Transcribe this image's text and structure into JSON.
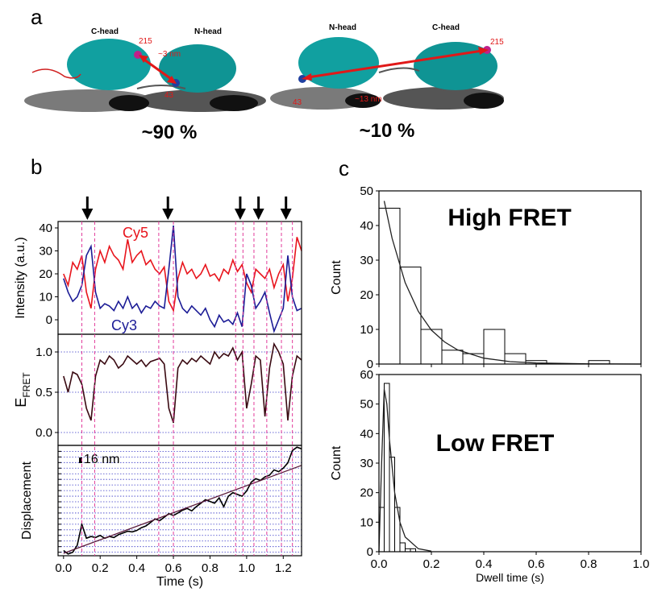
{
  "panel_labels": [
    "a",
    "b",
    "c"
  ],
  "structures": [
    {
      "heads": [
        "C-head",
        "N-head"
      ],
      "residue_top": "215",
      "residue_bottom": "43",
      "distance": "~3 nm",
      "population": "~90 %"
    },
    {
      "heads": [
        "N-head",
        "C-head"
      ],
      "residue_top": "215",
      "residue_bottom": "43",
      "distance": "~13 nm",
      "population": "~10 %"
    }
  ],
  "chart_data": [
    {
      "type": "line",
      "ylabel": "Intensity  (a.u.)",
      "xlim": [
        -0.03,
        1.3
      ],
      "ylim": [
        -6.3,
        42.8
      ],
      "yticks": [
        0,
        10,
        20,
        30,
        40
      ],
      "x": [
        0,
        0.025,
        0.05,
        0.075,
        0.1,
        0.125,
        0.15,
        0.175,
        0.2,
        0.225,
        0.25,
        0.275,
        0.3,
        0.325,
        0.35,
        0.375,
        0.4,
        0.425,
        0.45,
        0.475,
        0.5,
        0.525,
        0.55,
        0.575,
        0.6,
        0.625,
        0.65,
        0.675,
        0.7,
        0.725,
        0.75,
        0.775,
        0.8,
        0.825,
        0.85,
        0.875,
        0.9,
        0.925,
        0.95,
        0.975,
        1.0,
        1.025,
        1.05,
        1.075,
        1.1,
        1.125,
        1.15,
        1.175,
        1.2,
        1.225,
        1.25,
        1.275,
        1.3
      ],
      "series": [
        {
          "name": "Cy5",
          "color": "#e8141c",
          "values": [
            20,
            15,
            25,
            22,
            28,
            12,
            5,
            22,
            30,
            25,
            32,
            28,
            26,
            22,
            35,
            25,
            28,
            30,
            24,
            26,
            22,
            20,
            23,
            8,
            4,
            18,
            25,
            20,
            22,
            18,
            20,
            24,
            19,
            20,
            17,
            22,
            20,
            26,
            21,
            24,
            16,
            12,
            22,
            20,
            18,
            22,
            14,
            20,
            24,
            8,
            18,
            36,
            30
          ]
        },
        {
          "name": "Cy3",
          "color": "#1c1c96",
          "values": [
            18,
            12,
            8,
            10,
            15,
            28,
            32,
            12,
            5,
            7,
            6,
            4,
            8,
            5,
            10,
            5,
            7,
            3,
            6,
            5,
            8,
            6,
            5,
            22,
            41,
            10,
            5,
            3,
            6,
            4,
            2,
            5,
            0,
            -3,
            2,
            -1,
            0,
            -2,
            3,
            -3,
            20,
            15,
            5,
            8,
            12,
            3,
            -5,
            0,
            5,
            28,
            10,
            4,
            5
          ]
        }
      ],
      "arrows_x": [
        0.13,
        0.57,
        0.965,
        1.065,
        1.215
      ],
      "dwell_boundaries": [
        0.1,
        0.17,
        0.52,
        0.6,
        0.94,
        0.98,
        1.04,
        1.11,
        1.19,
        1.25
      ]
    },
    {
      "type": "line",
      "ylabel": {
        "main": "E",
        "sub": "FRET"
      },
      "xlim": [
        -0.03,
        1.3
      ],
      "ylim": [
        -0.16,
        1.22
      ],
      "grid": true,
      "yticks": [
        {
          "value": 0,
          "label": "0.0"
        },
        0.5,
        {
          "value": 1,
          "label": "1.0"
        }
      ],
      "x": [
        0,
        0.025,
        0.05,
        0.075,
        0.1,
        0.125,
        0.15,
        0.175,
        0.2,
        0.225,
        0.25,
        0.275,
        0.3,
        0.325,
        0.35,
        0.375,
        0.4,
        0.425,
        0.45,
        0.475,
        0.5,
        0.525,
        0.55,
        0.575,
        0.6,
        0.625,
        0.65,
        0.675,
        0.7,
        0.725,
        0.75,
        0.775,
        0.8,
        0.825,
        0.85,
        0.875,
        0.9,
        0.925,
        0.95,
        0.975,
        1.0,
        1.025,
        1.05,
        1.075,
        1.1,
        1.125,
        1.15,
        1.175,
        1.2,
        1.225,
        1.25,
        1.275,
        1.3
      ],
      "series": [
        {
          "color": "#3a0a12",
          "values": [
            0.7,
            0.5,
            0.75,
            0.72,
            0.6,
            0.3,
            0.15,
            0.7,
            0.9,
            0.85,
            0.95,
            0.9,
            0.8,
            0.85,
            0.95,
            0.9,
            0.85,
            0.9,
            0.82,
            0.88,
            0.9,
            0.92,
            0.85,
            0.3,
            0.12,
            0.8,
            0.9,
            0.85,
            0.92,
            0.88,
            0.95,
            0.9,
            0.85,
            1.0,
            0.92,
            0.98,
            0.95,
            1.05,
            0.9,
            1.0,
            0.3,
            0.6,
            0.95,
            0.9,
            0.2,
            0.8,
            1.1,
            1.0,
            0.85,
            0.15,
            0.7,
            0.95,
            0.9
          ]
        }
      ]
    },
    {
      "type": "line",
      "ylabel": "Displacement",
      "xlabel": "Time (s)",
      "xlim": [
        -0.03,
        1.3
      ],
      "ylim": [
        -10,
        305
      ],
      "xticks": [
        {
          "value": 0,
          "label": "0.0"
        },
        0.2,
        0.4,
        0.6,
        0.8,
        {
          "value": 1,
          "label": "1.0"
        },
        1.2
      ],
      "ygrid": [
        0,
        16,
        32,
        48,
        64,
        80,
        96,
        112,
        128,
        144,
        160,
        176,
        192,
        208,
        224,
        240,
        256,
        272,
        288
      ],
      "scale_bar": {
        "value": 16,
        "label": "16 nm"
      },
      "x": [
        0,
        0.025,
        0.05,
        0.075,
        0.1,
        0.125,
        0.15,
        0.175,
        0.2,
        0.225,
        0.25,
        0.275,
        0.3,
        0.325,
        0.35,
        0.375,
        0.4,
        0.425,
        0.45,
        0.475,
        0.5,
        0.525,
        0.55,
        0.575,
        0.6,
        0.625,
        0.65,
        0.675,
        0.7,
        0.725,
        0.75,
        0.775,
        0.8,
        0.825,
        0.85,
        0.875,
        0.9,
        0.925,
        0.95,
        0.975,
        1.0,
        1.025,
        1.05,
        1.075,
        1.1,
        1.125,
        1.15,
        1.175,
        1.2,
        1.225,
        1.25,
        1.275,
        1.3
      ],
      "series": [
        {
          "color": "#000000",
          "values": [
            5,
            -5,
            0,
            20,
            80,
            40,
            45,
            42,
            48,
            40,
            45,
            42,
            50,
            55,
            60,
            58,
            62,
            70,
            75,
            85,
            95,
            90,
            100,
            110,
            105,
            112,
            120,
            125,
            118,
            130,
            140,
            150,
            145,
            140,
            155,
            130,
            160,
            170,
            165,
            160,
            175,
            200,
            210,
            205,
            215,
            220,
            235,
            230,
            240,
            255,
            290,
            300,
            295
          ]
        }
      ],
      "fit": {
        "color": "#5a1a3a",
        "x": [
          0,
          1.3
        ],
        "values": [
          -3,
          248
        ]
      }
    },
    {
      "type": "histogram",
      "title": "High FRET",
      "ylabel": "Count",
      "xlim": [
        0,
        1.0
      ],
      "ylim": [
        0,
        50
      ],
      "yticks": [
        0,
        10,
        20,
        30,
        40,
        50
      ],
      "xticks": [
        0,
        0.2,
        0.4,
        0.6,
        0.8,
        1.0
      ],
      "bins": [
        0,
        0.08,
        0.16,
        0.24,
        0.32,
        0.4,
        0.48,
        0.56,
        0.64,
        0.72,
        0.8,
        0.88
      ],
      "counts": [
        45,
        28,
        10,
        4,
        3,
        10,
        3,
        1,
        0,
        0,
        1
      ],
      "fit": {
        "color": "#222222",
        "x": [
          0.02,
          0.05,
          0.1,
          0.15,
          0.2,
          0.25,
          0.3,
          0.4,
          0.5,
          0.6,
          0.8,
          1.0
        ],
        "values": [
          47.1,
          36.3,
          23.5,
          15.2,
          9.8,
          6.4,
          4.1,
          1.7,
          0.7,
          0.3,
          0.05,
          0.01
        ]
      }
    },
    {
      "type": "histogram",
      "title": "Low FRET",
      "ylabel": "Count",
      "xlabel": "Dwell time (s)",
      "xlim": [
        0,
        1.0
      ],
      "ylim": [
        0,
        60
      ],
      "yticks": [
        0,
        10,
        20,
        30,
        40,
        50,
        60
      ],
      "xticks": [
        {
          "value": 0,
          "label": "0.0"
        },
        0.2,
        0.4,
        0.6,
        0.8,
        {
          "value": 1,
          "label": "1.0"
        }
      ],
      "bins": [
        0,
        0.02,
        0.04,
        0.06,
        0.08,
        0.1,
        0.12,
        0.14
      ],
      "counts": [
        15,
        57,
        32,
        15,
        3,
        1,
        1
      ],
      "fit": {
        "color": "#222222",
        "x": [
          0,
          0.01,
          0.02,
          0.03,
          0.04,
          0.06,
          0.08,
          0.1,
          0.15,
          0.2
        ],
        "values": [
          0,
          30,
          55,
          50,
          38,
          20,
          10,
          5,
          1,
          0.2
        ]
      }
    }
  ]
}
